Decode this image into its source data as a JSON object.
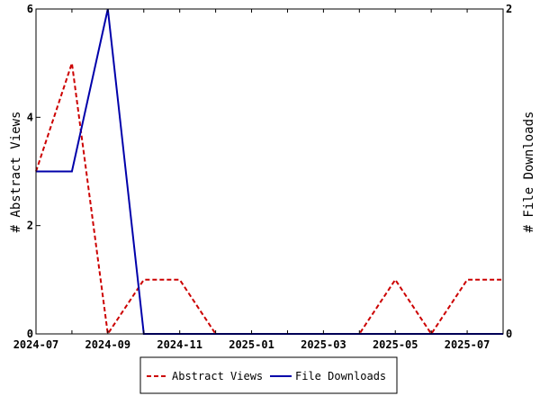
{
  "chart_data": {
    "type": "line",
    "x": [
      "2024-07",
      "2024-08",
      "2024-09",
      "2024-10",
      "2024-11",
      "2024-12",
      "2025-01",
      "2025-02",
      "2025-03",
      "2025-04",
      "2025-05",
      "2025-06",
      "2025-07",
      "2025-08"
    ],
    "x_tick_labels": [
      "2024-07",
      "2024-09",
      "2024-11",
      "2025-01",
      "2025-03",
      "2025-05",
      "2025-07"
    ],
    "series": [
      {
        "name": "Abstract Views",
        "axis": "left",
        "color": "#cc0000",
        "line_style": "dashed",
        "values": [
          3,
          5,
          0,
          1,
          1,
          0,
          0,
          0,
          0,
          0,
          1,
          0,
          1,
          1
        ]
      },
      {
        "name": "File Downloads",
        "axis": "right",
        "color": "#0000aa",
        "line_style": "solid",
        "values": [
          1,
          1,
          2,
          0,
          0,
          0,
          0,
          0,
          0,
          0,
          0,
          0,
          0,
          0
        ]
      }
    ],
    "ylabel_left": "# Abstract Views",
    "ylabel_right": "# File Downloads",
    "ylim_left": [
      0,
      6
    ],
    "yticks_left": [
      "0",
      "2",
      "4",
      "6"
    ],
    "ylim_right": [
      0,
      2
    ],
    "yticks_right": [
      "0",
      "2"
    ],
    "grid": false,
    "legend_position": "bottom"
  }
}
